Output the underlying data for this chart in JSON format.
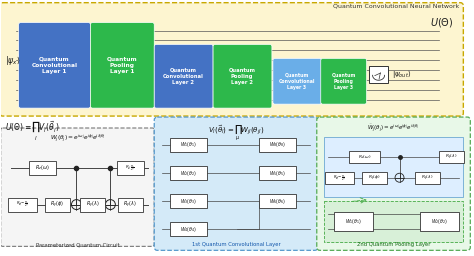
{
  "title": "Quantum Convolutional Neural Network",
  "bg_outer": "#fdf5d0",
  "bg_outer_border": "#c8a800",
  "conv_color": "#4472c4",
  "pool_color": "#2db84b",
  "conv3_color": "#6aaee8",
  "label_psi_in": "$|\\psi_x\\rangle$",
  "label_psi_out": "$|\\psi_{out}\\rangle$",
  "label_U": "$U(\\Theta)$",
  "box1_label": "Parameterized Quantum Circuit",
  "box2_label": "1st Quantum Convolutional Layer",
  "box3_label": "2nd Quantum Pooling Layer"
}
